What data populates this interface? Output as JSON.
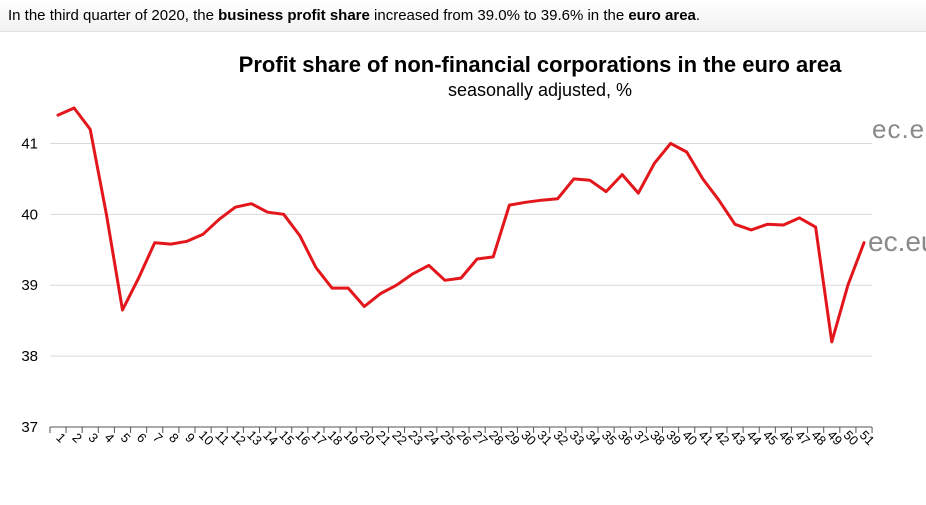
{
  "caption": {
    "p1": "In the third quarter of 2020, the ",
    "b1": "business profit share",
    "p2": " increased from 39.0% to 39.6% in the ",
    "b2": "euro area",
    "p3": "."
  },
  "watermark": {
    "top": "ec.eu",
    "mid": "ec.eu"
  },
  "chart_data": {
    "type": "line",
    "title": "Profit share of non-financial corporations in the euro area",
    "subtitle": "seasonally adjusted, %",
    "xlabel": "",
    "ylabel": "",
    "ylim": [
      37,
      41.5
    ],
    "yticks": [
      37,
      38,
      39,
      40,
      41
    ],
    "grid": true,
    "line_color": "#e3161b",
    "x": [
      "1",
      "2",
      "3",
      "4",
      "5",
      "6",
      "7",
      "8",
      "9",
      "10",
      "11",
      "12",
      "13",
      "14",
      "15",
      "16",
      "17",
      "18",
      "19",
      "20",
      "21",
      "22",
      "23",
      "24",
      "25",
      "26",
      "27",
      "28",
      "29",
      "30",
      "31",
      "32",
      "33",
      "34",
      "35",
      "36",
      "37",
      "38",
      "39",
      "40",
      "41",
      "42",
      "43",
      "44",
      "45",
      "46",
      "47",
      "48",
      "49",
      "50",
      "51"
    ],
    "series": [
      {
        "values": [
          41.4,
          41.5,
          41.2,
          40.0,
          38.65,
          39.1,
          39.6,
          39.58,
          39.62,
          39.72,
          39.93,
          40.1,
          40.15,
          40.03,
          40.0,
          39.7,
          39.25,
          38.96,
          38.96,
          38.7,
          38.88,
          39.0,
          39.16,
          39.28,
          39.07,
          39.1,
          39.37,
          39.4,
          40.13,
          40.17,
          40.2,
          40.22,
          40.5,
          40.48,
          40.32,
          40.56,
          40.3,
          40.72,
          41.0,
          40.88,
          40.5,
          40.2,
          39.86,
          39.78,
          39.86,
          39.85,
          39.95,
          39.82,
          38.2,
          39.0,
          39.6
        ]
      }
    ]
  }
}
